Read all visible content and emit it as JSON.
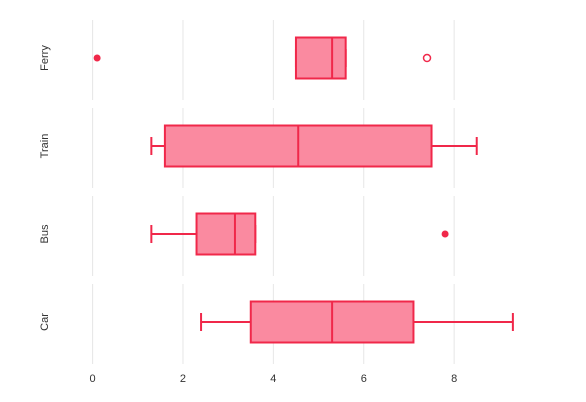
{
  "chart_data": {
    "type": "boxplot",
    "orientation": "horizontal",
    "title": "",
    "xlabel": "",
    "ylabel": "",
    "xlim": [
      -0.5,
      9.9
    ],
    "x_ticks": [
      0,
      2,
      4,
      6,
      8
    ],
    "x_tick_labels": [
      "0",
      "2",
      "4",
      "6",
      "8"
    ],
    "categories": [
      "Ferry",
      "Train",
      "Bus",
      "Car"
    ],
    "grid": "vertical",
    "colors": {
      "fill": "#fa8aa0",
      "stroke": "#f0284a",
      "grid": "#e6e6e6"
    },
    "boxes": [
      {
        "category": "Ferry",
        "whisker_low": 4.5,
        "q1": 4.5,
        "median": 5.3,
        "q3": 5.6,
        "whisker_high": 5.6,
        "outliers": [
          {
            "value": 0.1,
            "filled": true
          },
          {
            "value": 7.4,
            "filled": false
          }
        ]
      },
      {
        "category": "Train",
        "whisker_low": 1.3,
        "q1": 1.6,
        "median": 4.55,
        "q3": 7.5,
        "whisker_high": 8.5,
        "outliers": []
      },
      {
        "category": "Bus",
        "whisker_low": 1.3,
        "q1": 2.3,
        "median": 3.15,
        "q3": 3.6,
        "whisker_high": 3.6,
        "outliers": [
          {
            "value": 7.8,
            "filled": true
          }
        ]
      },
      {
        "category": "Car",
        "whisker_low": 2.4,
        "q1": 3.5,
        "median": 5.3,
        "q3": 7.1,
        "whisker_high": 9.3,
        "outliers": []
      }
    ]
  }
}
